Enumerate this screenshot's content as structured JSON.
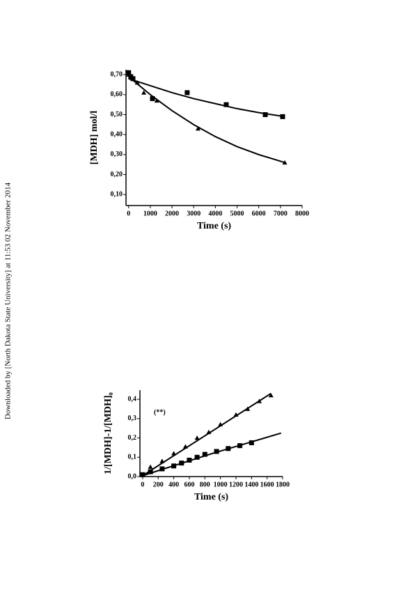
{
  "side_note": "Downloaded by [North Dakota State University] at 11:53 02 November 2014",
  "chart_data": [
    {
      "type": "scatter",
      "x_label": "Time (s)",
      "y_label": "[MDH] mol/l",
      "xlim": [
        -120,
        8000
      ],
      "ylim": [
        0.045,
        0.725
      ],
      "xticks": [
        0,
        1000,
        2000,
        3000,
        4000,
        5000,
        6000,
        7000,
        8000
      ],
      "yticks": [
        {
          "value": 0.1,
          "label": "0,10"
        },
        {
          "value": 0.2,
          "label": "0,20"
        },
        {
          "value": 0.3,
          "label": "0,30"
        },
        {
          "value": 0.4,
          "label": "0,40"
        },
        {
          "value": 0.5,
          "label": "0,50"
        },
        {
          "value": 0.6,
          "label": "0,60"
        },
        {
          "value": 0.7,
          "label": "0,70"
        }
      ],
      "series": [
        {
          "marker": "square",
          "color": "#000000",
          "x": [
            0,
            100,
            200,
            1100,
            2700,
            4500,
            6300,
            7100
          ],
          "values": [
            0.71,
            0.69,
            0.68,
            0.58,
            0.61,
            0.55,
            0.5,
            0.49
          ]
        },
        {
          "marker": "triangle",
          "color": "#000000",
          "x": [
            0,
            400,
            700,
            1300,
            3200,
            7200
          ],
          "values": [
            0.7,
            0.66,
            0.61,
            0.57,
            0.43,
            0.26
          ]
        }
      ],
      "fits": [
        {
          "x": [
            0,
            1000,
            2000,
            3000,
            4000,
            5000,
            6000,
            7200
          ],
          "values": [
            0.68,
            0.645,
            0.61,
            0.58,
            0.555,
            0.53,
            0.51,
            0.49
          ]
        },
        {
          "x": [
            0,
            1000,
            2000,
            3000,
            4000,
            5000,
            6000,
            7200
          ],
          "values": [
            0.69,
            0.6,
            0.52,
            0.45,
            0.39,
            0.34,
            0.3,
            0.26
          ]
        }
      ]
    },
    {
      "type": "scatter",
      "x_label": "Time (s)",
      "y_label": "1/[MDH]-1/[MDH]₀",
      "annotation": "(**)",
      "xlim": [
        -35,
        1800
      ],
      "ylim": [
        0,
        0.447
      ],
      "xticks": [
        0,
        200,
        400,
        600,
        800,
        1000,
        1200,
        1400,
        1600,
        1800
      ],
      "yticks": [
        {
          "value": 0,
          "label": "0,0"
        },
        {
          "value": 0.1,
          "label": "0,1"
        },
        {
          "value": 0.2,
          "label": "0,2"
        },
        {
          "value": 0.3,
          "label": "0,3"
        },
        {
          "value": 0.4,
          "label": "0,4"
        }
      ],
      "series": [
        {
          "marker": "triangle",
          "color": "#000000",
          "x": [
            0,
            100,
            250,
            400,
            550,
            700,
            850,
            1000,
            1200,
            1350,
            1500,
            1650
          ],
          "values": [
            0.01,
            0.05,
            0.08,
            0.12,
            0.155,
            0.2,
            0.23,
            0.27,
            0.32,
            0.35,
            0.39,
            0.42
          ]
        },
        {
          "marker": "square",
          "color": "#000000",
          "x": [
            0,
            100,
            250,
            400,
            500,
            600,
            700,
            800,
            950,
            1100,
            1250,
            1400
          ],
          "values": [
            0.01,
            0.025,
            0.04,
            0.055,
            0.07,
            0.085,
            0.1,
            0.115,
            0.13,
            0.145,
            0.16,
            0.175
          ]
        }
      ],
      "fits": [
        {
          "x": [
            0,
            1650
          ],
          "values": [
            0.005,
            0.43
          ]
        },
        {
          "x": [
            0,
            900,
            1780
          ],
          "values": [
            0.005,
            0.12,
            0.225
          ]
        }
      ]
    }
  ]
}
